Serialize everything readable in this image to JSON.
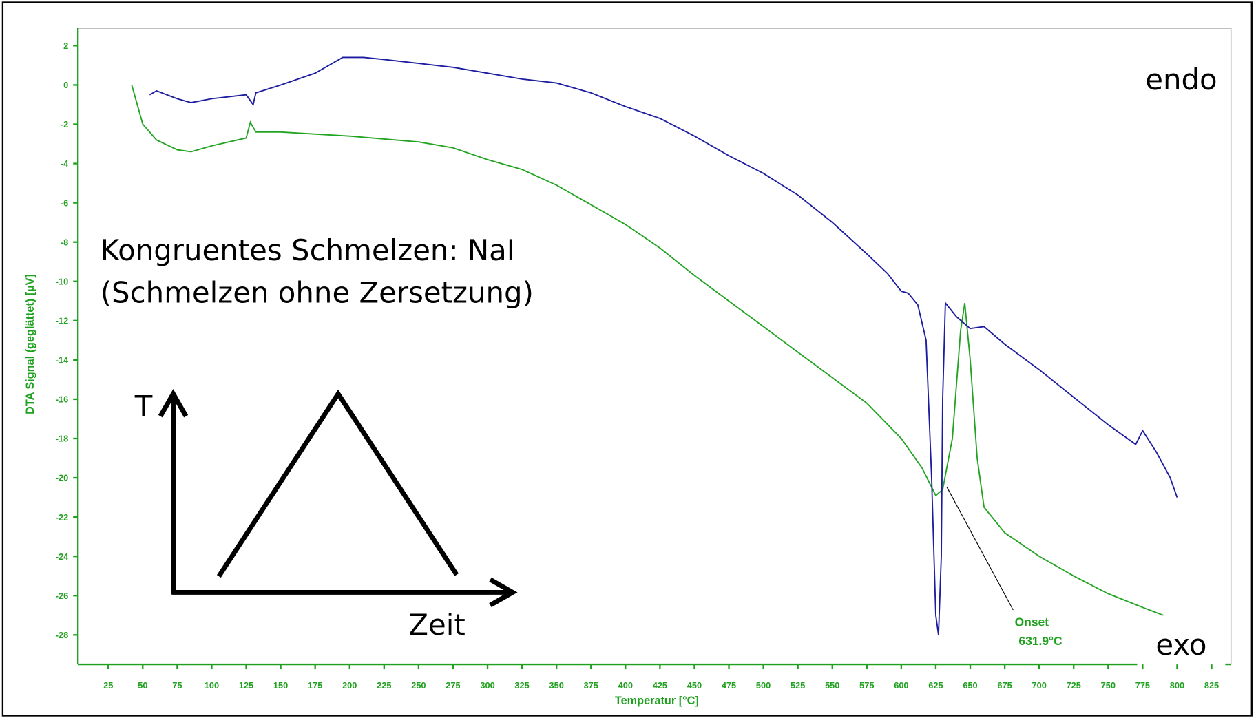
{
  "chart_data": {
    "type": "line",
    "xlabel": "Temperatur  [°C]",
    "ylabel": "DTA Signal (geglättet)  [µV]",
    "xlim": [
      3,
      839
    ],
    "ylim": [
      -29.5,
      2.9
    ],
    "xticks": [
      25,
      50,
      75,
      100,
      125,
      150,
      175,
      200,
      225,
      250,
      275,
      300,
      325,
      350,
      375,
      400,
      425,
      450,
      475,
      500,
      525,
      550,
      575,
      600,
      625,
      650,
      675,
      700,
      725,
      750,
      775,
      800,
      825
    ],
    "yticks": [
      2,
      0,
      -2,
      -4,
      -6,
      -8,
      -10,
      -12,
      -14,
      -16,
      -18,
      -20,
      -22,
      -24,
      -26,
      -28
    ],
    "series": [
      {
        "color": "#22a322",
        "x": [
          42,
          50,
          60,
          75,
          85,
          100,
          125,
          128,
          132,
          150,
          200,
          250,
          275,
          300,
          325,
          350,
          375,
          400,
          425,
          450,
          475,
          500,
          525,
          550,
          575,
          600,
          615,
          625,
          630,
          637,
          643,
          646,
          650,
          655,
          660,
          675,
          700,
          725,
          750,
          775,
          790
        ],
        "values": [
          0,
          -2,
          -2.8,
          -3.3,
          -3.4,
          -3.1,
          -2.7,
          -1.9,
          -2.4,
          -2.4,
          -2.6,
          -2.9,
          -3.2,
          -3.8,
          -4.3,
          -5.1,
          -6.1,
          -7.1,
          -8.3,
          -9.7,
          -11.0,
          -12.3,
          -13.6,
          -14.9,
          -16.2,
          -18.0,
          -19.5,
          -20.9,
          -20.6,
          -18,
          -12.5,
          -11.1,
          -14,
          -19,
          -21.5,
          -22.8,
          -24.0,
          -25.0,
          -25.9,
          -26.6,
          -27.0
        ]
      },
      {
        "color": "#1c1ca0",
        "x": [
          55,
          60,
          75,
          85,
          100,
          125,
          130,
          132,
          150,
          175,
          195,
          210,
          225,
          250,
          275,
          300,
          325,
          350,
          375,
          400,
          425,
          450,
          475,
          500,
          525,
          550,
          575,
          590,
          600,
          605,
          612,
          618,
          622,
          625,
          627,
          629,
          630,
          632,
          640,
          650,
          660,
          675,
          700,
          725,
          750,
          770,
          775,
          785,
          795,
          800
        ],
        "values": [
          -0.5,
          -0.3,
          -0.7,
          -0.9,
          -0.7,
          -0.5,
          -1.0,
          -0.4,
          0,
          0.6,
          1.4,
          1.4,
          1.3,
          1.1,
          0.9,
          0.6,
          0.3,
          0.1,
          -0.4,
          -1.1,
          -1.7,
          -2.6,
          -3.6,
          -4.5,
          -5.6,
          -7.0,
          -8.6,
          -9.6,
          -10.5,
          -10.6,
          -11.2,
          -13,
          -20,
          -27,
          -28,
          -24,
          -16,
          -11.1,
          -11.8,
          -12.4,
          -12.3,
          -13.2,
          -14.5,
          -15.9,
          -17.3,
          -18.3,
          -17.6,
          -18.7,
          -20.0,
          -21.0
        ]
      }
    ],
    "annotations": [
      "endo",
      "exo",
      "Onset",
      "631.9°C"
    ],
    "text": [
      "Kongruentes Schmelzen: NaI",
      "(Schmelzen ohne Zersetzung)"
    ],
    "diagram": {
      "y": "T",
      "x": "Zeit"
    }
  }
}
